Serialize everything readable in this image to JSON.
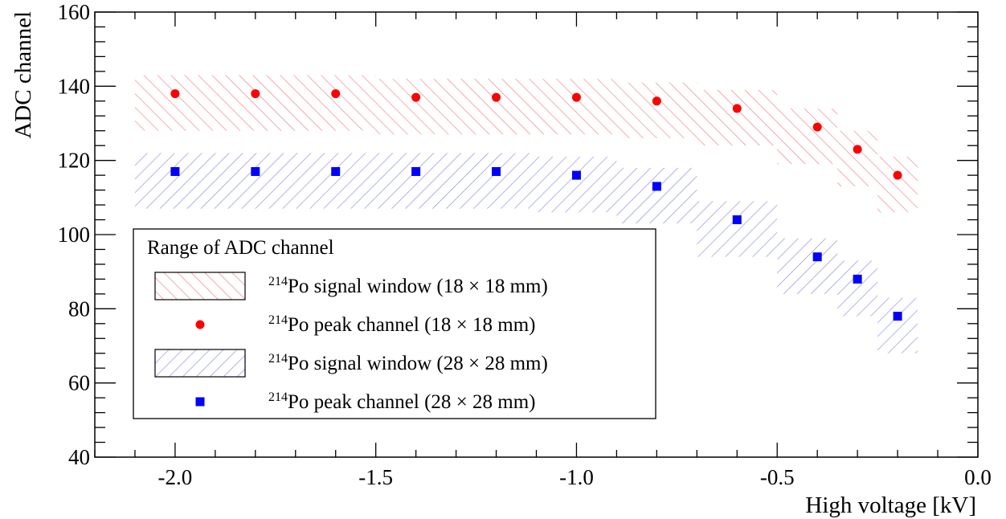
{
  "chart_data": {
    "type": "scatter",
    "title": "",
    "xlabel": "High voltage [kV]",
    "ylabel": "ADC channel",
    "xlim": [
      -2.2,
      0.0
    ],
    "ylim": [
      40,
      160
    ],
    "xticks": [
      -2.0,
      -1.5,
      -1.0,
      -0.5,
      0.0
    ],
    "xtick_labels": [
      "-2.0",
      "-1.5",
      "-1.0",
      "-0.5",
      "0.0"
    ],
    "yticks": [
      40,
      60,
      80,
      100,
      120,
      140,
      160
    ],
    "ytick_labels": [
      "40",
      "60",
      "80",
      "100",
      "120",
      "140",
      "160"
    ],
    "grid": false,
    "legend": {
      "title": "Range of ADC channel",
      "placement": "lower-left",
      "entries": [
        {
          "sup": "214",
          "label": "Po signal window (18 × 18 mm)",
          "kind": "band",
          "series": 0
        },
        {
          "sup": "214",
          "label": "Po peak channel (18 × 18 mm)",
          "kind": "points",
          "series": 0
        },
        {
          "sup": "214",
          "label": "Po signal window (28 × 28 mm)",
          "kind": "band",
          "series": 1
        },
        {
          "sup": "214",
          "label": "Po peak channel (28 × 28 mm)",
          "kind": "points",
          "series": 1
        }
      ]
    },
    "series": [
      {
        "color": "#ff0000",
        "band_color": "#f08080",
        "marker": "circle",
        "x": [
          -2.0,
          -1.8,
          -1.6,
          -1.4,
          -1.2,
          -1.0,
          -0.8,
          -0.6,
          -0.4,
          -0.3,
          -0.2
        ],
        "y": [
          138,
          138,
          138,
          137,
          137,
          137,
          136,
          134,
          129,
          123,
          116
        ],
        "window": [
          {
            "x0": -2.1,
            "x1": -1.9,
            "low": 128,
            "high": 143
          },
          {
            "x0": -1.9,
            "x1": -1.7,
            "low": 128,
            "high": 143
          },
          {
            "x0": -1.7,
            "x1": -1.5,
            "low": 128,
            "high": 143
          },
          {
            "x0": -1.5,
            "x1": -1.3,
            "low": 127,
            "high": 142
          },
          {
            "x0": -1.3,
            "x1": -1.1,
            "low": 127,
            "high": 142
          },
          {
            "x0": -1.1,
            "x1": -0.9,
            "low": 127,
            "high": 142
          },
          {
            "x0": -0.9,
            "x1": -0.7,
            "low": 126,
            "high": 141
          },
          {
            "x0": -0.7,
            "x1": -0.5,
            "low": 124,
            "high": 139
          },
          {
            "x0": -0.5,
            "x1": -0.35,
            "low": 119,
            "high": 134
          },
          {
            "x0": -0.35,
            "x1": -0.25,
            "low": 113,
            "high": 128
          },
          {
            "x0": -0.25,
            "x1": -0.15,
            "low": 106,
            "high": 121
          }
        ]
      },
      {
        "color": "#0000ff",
        "band_color": "#8a8ae8",
        "marker": "square",
        "x": [
          -2.0,
          -1.8,
          -1.6,
          -1.4,
          -1.2,
          -1.0,
          -0.8,
          -0.6,
          -0.4,
          -0.3,
          -0.2
        ],
        "y": [
          117,
          117,
          117,
          117,
          117,
          116,
          113,
          104,
          94,
          88,
          78
        ],
        "window": [
          {
            "x0": -2.1,
            "x1": -1.9,
            "low": 107,
            "high": 122
          },
          {
            "x0": -1.9,
            "x1": -1.7,
            "low": 107,
            "high": 122
          },
          {
            "x0": -1.7,
            "x1": -1.5,
            "low": 107,
            "high": 122
          },
          {
            "x0": -1.5,
            "x1": -1.3,
            "low": 107,
            "high": 122
          },
          {
            "x0": -1.3,
            "x1": -1.1,
            "low": 107,
            "high": 122
          },
          {
            "x0": -1.1,
            "x1": -0.9,
            "low": 106,
            "high": 121
          },
          {
            "x0": -0.9,
            "x1": -0.7,
            "low": 103,
            "high": 118
          },
          {
            "x0": -0.7,
            "x1": -0.5,
            "low": 94,
            "high": 109
          },
          {
            "x0": -0.5,
            "x1": -0.35,
            "low": 84,
            "high": 99
          },
          {
            "x0": -0.35,
            "x1": -0.25,
            "low": 78,
            "high": 93
          },
          {
            "x0": -0.25,
            "x1": -0.15,
            "low": 68,
            "high": 83
          }
        ]
      }
    ]
  }
}
